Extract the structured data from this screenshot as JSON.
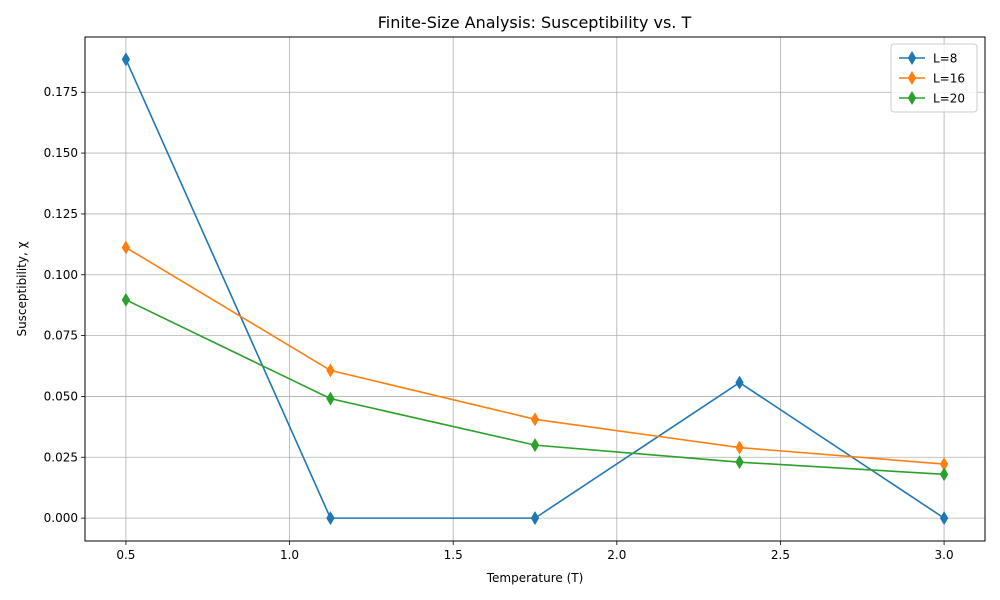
{
  "chart_data": {
    "type": "line",
    "title": "Finite-Size Analysis: Susceptibility vs. T",
    "xlabel": "Temperature (T)",
    "ylabel": "Susceptibility, χ",
    "x": [
      0.5,
      1.125,
      1.75,
      2.375,
      3.0
    ],
    "xlim": [
      0.375,
      3.125
    ],
    "ylim": [
      -0.0094,
      0.1977
    ],
    "x_ticks": [
      "0.5",
      "1.0",
      "1.5",
      "2.0",
      "2.5",
      "3.0"
    ],
    "y_ticks": [
      "0.000",
      "0.025",
      "0.050",
      "0.075",
      "0.100",
      "0.125",
      "0.150",
      "0.175"
    ],
    "grid": true,
    "legend_position": "top-right",
    "marker": "thin_diamond",
    "series": [
      {
        "name": "L=8",
        "color": "#1f77b4",
        "values": [
          0.1885,
          0.0,
          0.0,
          0.0557,
          0.0
        ]
      },
      {
        "name": "L=16",
        "color": "#ff7f0e",
        "values": [
          0.1112,
          0.0607,
          0.0406,
          0.029,
          0.0222
        ]
      },
      {
        "name": "L=20",
        "color": "#2ca02c",
        "values": [
          0.0897,
          0.0491,
          0.03,
          0.023,
          0.018
        ]
      }
    ]
  }
}
